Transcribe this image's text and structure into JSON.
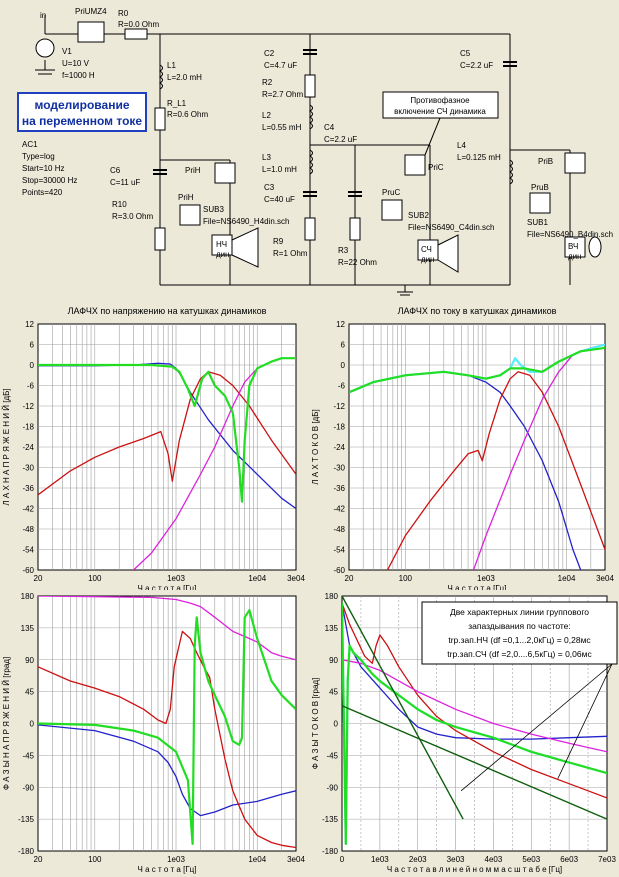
{
  "schematic": {
    "input_label": "in",
    "meter_top": "PriUMZ4",
    "v1": [
      "V1",
      "U=10 V",
      "f=1000 H"
    ],
    "r0": [
      "R0",
      "R=0.0 Ohm"
    ],
    "l1": [
      "L1",
      "L=2.0 mH"
    ],
    "rl1": [
      "R_L1",
      "R=0.6 Ohm"
    ],
    "c2": [
      "C2",
      "C=4.7 uF"
    ],
    "r2": [
      "R2",
      "R=2.7 Ohm"
    ],
    "l2": [
      "L2",
      "L=0.55 mH"
    ],
    "l3": [
      "L3",
      "L=1.0 mH"
    ],
    "c3": [
      "C3",
      "C=40 uF"
    ],
    "c4": [
      "C4",
      "C=2.2 uF"
    ],
    "r3": [
      "R3",
      "R=22 Ohm"
    ],
    "r9": [
      "R9",
      "R=1 Ohm"
    ],
    "c5": [
      "C5",
      "C=2.2 uF"
    ],
    "l4": [
      "L4",
      "L=0.125 mH"
    ],
    "c6": [
      "C6",
      "C=11 uF"
    ],
    "r10": [
      "R10",
      "R=3.0 Ohm"
    ],
    "prih": "PriH",
    "prih2": "PriH",
    "pric": "PriC",
    "pruc": "PruC",
    "prib": "PriB",
    "prub": "PruB",
    "sub3": [
      "SUB3",
      "File=NS6490_H4din.sch"
    ],
    "sub2": [
      "SUB2",
      "File=NS6490_C4din.sch"
    ],
    "sub1": [
      "SUB1",
      "File=NS6490_B4din.sch"
    ],
    "spk_nch": [
      "НЧ",
      "дин"
    ],
    "spk_sch": [
      "СЧ",
      "дин"
    ],
    "spk_vch": [
      "ВЧ",
      "дин"
    ],
    "title_box": [
      "моделирование",
      "на переменном токе"
    ],
    "ac1": [
      "AC1",
      "Type=log",
      "Start=10 Hz",
      "Stop=30000 Hz",
      "Points=420"
    ],
    "note": [
      "Противофазное",
      "включение СЧ динамика"
    ]
  },
  "chart_data": [
    {
      "type": "line",
      "title": "ЛАФЧХ по напряжению на катушках динамиков",
      "xlabel": "Ч а с т о т а   [Гц]",
      "ylabel": "Л А Х   Н А П Р Я Ж Е Н И Й   [дБ]",
      "xscale": "log",
      "xlim": [
        20,
        30000
      ],
      "ylim": [
        -60,
        12
      ],
      "xticks": [
        20,
        100,
        1000,
        10000,
        30000
      ],
      "xticklabels": [
        "20",
        "100",
        "1e03",
        "1e04",
        "3e04"
      ],
      "yticks": [
        -60,
        -54,
        -48,
        -42,
        -36,
        -30,
        -24,
        -18,
        -12,
        -6,
        0,
        6,
        12
      ],
      "series": [
        {
          "color": "#2222cc",
          "x": [
            20,
            100,
            300,
            600,
            850,
            1000,
            1150,
            1500,
            2500,
            5000,
            10000,
            20000,
            30000
          ],
          "y": [
            -0.2,
            -0.2,
            0,
            0.5,
            0.3,
            -1,
            -3,
            -8,
            -16,
            -25,
            -32,
            -39,
            -42
          ]
        },
        {
          "color": "#cc1111",
          "x": [
            20,
            50,
            100,
            200,
            400,
            650,
            800,
            900,
            1100,
            1500,
            2000,
            2500,
            3500,
            5000,
            8000,
            15000,
            30000
          ],
          "y": [
            -38,
            -31,
            -27,
            -24,
            -21.5,
            -19.5,
            -26,
            -34,
            -22,
            -10,
            -4,
            -2,
            -3,
            -6,
            -12,
            -22,
            -32
          ]
        },
        {
          "color": "#dd22dd",
          "x": [
            300,
            500,
            1000,
            2000,
            3000,
            5000,
            7000,
            10000,
            15000,
            20000,
            30000
          ],
          "y": [
            -60,
            -55,
            -45,
            -32,
            -24,
            -12,
            -5,
            -1,
            1,
            2,
            2
          ]
        },
        {
          "color": "#22dd22",
          "x": [
            20,
            100,
            500,
            900,
            1100,
            1400,
            1700,
            2100,
            2500,
            3000,
            4000,
            5000,
            6000,
            6500,
            7000,
            8000,
            10000,
            15000,
            20000,
            30000
          ],
          "y": [
            0,
            0,
            0,
            -0.5,
            -2,
            -7,
            -12,
            -4,
            -2,
            -6,
            -9,
            -14,
            -30,
            -40,
            -22,
            -6,
            -1,
            1,
            2,
            2
          ]
        }
      ]
    },
    {
      "type": "line",
      "title": "ЛАФЧХ по току в катушках динамиков",
      "xlabel": "Ч а с т о т а   [Гц]",
      "ylabel": "Л А Х   Т О К О В   [дБ]",
      "xscale": "log",
      "xlim": [
        20,
        30000
      ],
      "ylim": [
        -60,
        12
      ],
      "xticks": [
        20,
        100,
        1000,
        10000,
        30000
      ],
      "xticklabels": [
        "20",
        "100",
        "1e03",
        "1e04",
        "3e04"
      ],
      "yticks": [
        -60,
        -54,
        -48,
        -42,
        -36,
        -30,
        -24,
        -18,
        -12,
        -6,
        0,
        6,
        12
      ],
      "series": [
        {
          "color": "#2222cc",
          "x": [
            20,
            40,
            100,
            300,
            600,
            1000,
            1500,
            2000,
            3000,
            5000,
            8000,
            12000,
            15000
          ],
          "y": [
            -8,
            -5,
            -3,
            -2,
            -3,
            -5,
            -8,
            -12,
            -18,
            -28,
            -40,
            -54,
            -60
          ]
        },
        {
          "color": "#cc1111",
          "x": [
            60,
            100,
            200,
            400,
            600,
            800,
            900,
            1100,
            1500,
            2000,
            2500,
            3500,
            5000,
            8000,
            15000,
            30000
          ],
          "y": [
            -60,
            -50,
            -40,
            -31,
            -26,
            -25,
            -28,
            -20,
            -10,
            -4,
            -2,
            -3,
            -8,
            -18,
            -35,
            -54
          ]
        },
        {
          "color": "#dd22dd",
          "x": [
            700,
            1000,
            2000,
            3000,
            5000,
            8000,
            12000,
            20000,
            30000
          ],
          "y": [
            -60,
            -50,
            -32,
            -22,
            -10,
            -2,
            3,
            5,
            6
          ]
        },
        {
          "color": "#55eeff",
          "x": [
            20,
            40,
            100,
            300,
            600,
            1000,
            1500,
            2000,
            2300,
            2700,
            3500,
            5000,
            8000,
            15000,
            30000
          ],
          "y": [
            -8,
            -5,
            -3,
            -2,
            -3,
            -4,
            -3,
            -1,
            2,
            0,
            -2,
            -2,
            1,
            4,
            6
          ]
        },
        {
          "color": "#22dd22",
          "x": [
            20,
            40,
            100,
            300,
            600,
            1000,
            1500,
            2000,
            3000,
            5000,
            8000,
            15000,
            30000
          ],
          "y": [
            -8,
            -5,
            -3,
            -2,
            -3,
            -4,
            -3,
            -1,
            -1,
            -2,
            1,
            4,
            5
          ]
        }
      ]
    },
    {
      "type": "line",
      "title": "",
      "xlabel": "Ч а с т о т а   [Гц]",
      "ylabel": "Ф А З Ы   Н А П Р Я Ж Е Н И Й   [град]",
      "xscale": "log",
      "xlim": [
        20,
        30000
      ],
      "ylim": [
        -180,
        180
      ],
      "xticks": [
        20,
        100,
        1000,
        10000,
        30000
      ],
      "xticklabels": [
        "20",
        "100",
        "1e03",
        "1e04",
        "3e04"
      ],
      "yticks": [
        -180,
        -135,
        -90,
        -45,
        0,
        45,
        90,
        135,
        180
      ],
      "series": [
        {
          "color": "#2222cc",
          "x": [
            20,
            100,
            300,
            600,
            800,
            1000,
            1200,
            1500,
            2000,
            3000,
            5000,
            10000,
            20000,
            30000
          ],
          "y": [
            -2,
            -10,
            -25,
            -40,
            -55,
            -75,
            -100,
            -120,
            -130,
            -125,
            -115,
            -110,
            -100,
            -95
          ]
        },
        {
          "color": "#cc1111",
          "x": [
            20,
            50,
            100,
            200,
            400,
            600,
            750,
            850,
            950,
            1200,
            1500,
            1800,
            2200,
            2600,
            3000,
            4000,
            5000,
            7000,
            10000,
            15000,
            20000,
            30000
          ],
          "y": [
            80,
            60,
            50,
            38,
            20,
            5,
            0,
            20,
            80,
            130,
            120,
            100,
            80,
            65,
            20,
            -50,
            -95,
            -135,
            -158,
            -168,
            -172,
            -175
          ]
        },
        {
          "color": "#dd22dd",
          "x": [
            20,
            500,
            1000,
            1500,
            2000,
            3000,
            5000,
            8000,
            10000,
            15000,
            20000,
            30000
          ],
          "y": [
            180,
            178,
            175,
            170,
            165,
            150,
            130,
            120,
            115,
            100,
            95,
            90
          ]
        },
        {
          "color": "#22dd22",
          "x": [
            20,
            100,
            300,
            600,
            1000,
            1400,
            1600,
            1700,
            1800,
            2000,
            2500,
            3000,
            4000,
            5000,
            6000,
            6500,
            7000,
            8000,
            10000,
            15000,
            20000,
            30000
          ],
          "y": [
            0,
            -2,
            -10,
            -20,
            -40,
            -80,
            -170,
            110,
            150,
            100,
            60,
            40,
            10,
            -25,
            -30,
            -20,
            150,
            160,
            120,
            60,
            40,
            20
          ]
        }
      ]
    },
    {
      "type": "line",
      "title": "",
      "xlabel": "Ч а с т о т а   в   л и н е й н о м   м а с ш т а б е   [Гц]",
      "ylabel": "Ф А З Ы   Т О К О В   [град]",
      "xscale": "linear",
      "xlim": [
        0,
        7000
      ],
      "ylim": [
        -180,
        180
      ],
      "xticks": [
        0,
        1000,
        2000,
        3000,
        4000,
        5000,
        6000,
        7000
      ],
      "xticklabels": [
        "0",
        "1e03",
        "2e03",
        "3e03",
        "4e03",
        "5e03",
        "6e03",
        "7e03"
      ],
      "yticks": [
        -180,
        -135,
        -90,
        -45,
        0,
        45,
        90,
        135,
        180
      ],
      "annotation": [
        "Две характерных линии группового",
        "запаздывания по частоте:",
        "trp.зап.НЧ  (df =0,1...2,0кГц) = 0,28мс",
        "trp.зап.СЧ  (df =2,0....6,5кГц) = 0,06мс"
      ],
      "series": [
        {
          "color": "#2222cc",
          "x": [
            0,
            200,
            500,
            1000,
            1500,
            2000,
            2500,
            3000,
            4000,
            5000,
            6000,
            7000
          ],
          "y": [
            170,
            110,
            80,
            50,
            20,
            -5,
            -15,
            -20,
            -22,
            -22,
            -20,
            -18
          ]
        },
        {
          "color": "#cc1111",
          "x": [
            0,
            200,
            600,
            800,
            900,
            1000,
            1200,
            1500,
            2000,
            2500,
            3000,
            4000,
            5000,
            6000,
            7000
          ],
          "y": [
            170,
            140,
            95,
            85,
            110,
            125,
            110,
            80,
            40,
            10,
            -10,
            -40,
            -65,
            -85,
            -105
          ]
        },
        {
          "color": "#dd22dd",
          "x": [
            0,
            500,
            1000,
            2000,
            3000,
            4000,
            5000,
            6000,
            7000
          ],
          "y": [
            90,
            85,
            75,
            45,
            20,
            0,
            -15,
            -28,
            -40
          ]
        },
        {
          "color": "#55eeff",
          "x": [
            0,
            100,
            150,
            200,
            300,
            500,
            800,
            1000,
            1500,
            2000,
            2500,
            3000,
            4000,
            5000,
            6000,
            7000
          ],
          "y": [
            170,
            -170,
            60,
            110,
            100,
            90,
            70,
            60,
            40,
            20,
            5,
            -5,
            -20,
            -40,
            -55,
            -70
          ]
        },
        {
          "color": "#22dd22",
          "x": [
            0,
            100,
            150,
            200,
            300,
            500,
            800,
            1000,
            1500,
            2000,
            2500,
            3000,
            4000,
            5000,
            6000,
            7000
          ],
          "y": [
            170,
            -170,
            60,
            110,
            100,
            90,
            70,
            60,
            40,
            20,
            5,
            -5,
            -20,
            -40,
            -55,
            -70
          ]
        },
        {
          "color": "#0e5e0e",
          "x": [
            0,
            3200
          ],
          "y": [
            180,
            -135
          ]
        },
        {
          "color": "#0e5e0e",
          "x": [
            0,
            7000
          ],
          "y": [
            25,
            -135
          ]
        }
      ]
    }
  ]
}
